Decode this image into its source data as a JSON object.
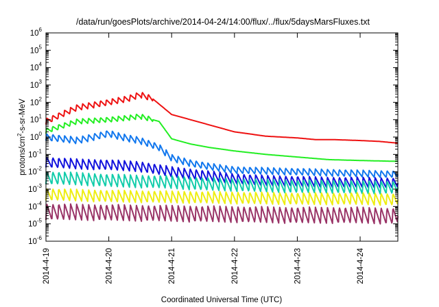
{
  "chart_data": {
    "type": "line",
    "title": "/data/run/goesPlots/archive/2014-04-24/14:00/flux/../flux/5daysMarsFluxes.txt",
    "xlabel": "Coordinated Universal Time (UTC)",
    "ylabel": "protons/cm²-s-sr-MeV",
    "ylabel_base": "protons/cm",
    "ylabel_sup": "2",
    "ylabel_rest": "-s-sr-MeV",
    "yscale": "log",
    "ylim_exp": [
      -6,
      6
    ],
    "y_tick_exponents": [
      -6,
      -5,
      -4,
      -3,
      -2,
      -1,
      0,
      1,
      2,
      3,
      4,
      5,
      6
    ],
    "xlim_days": [
      0,
      5.6
    ],
    "x_ticks": [
      {
        "label": "2014-4-19",
        "day": 0
      },
      {
        "label": "2014-4-20",
        "day": 1
      },
      {
        "label": "2014-4-21",
        "day": 2
      },
      {
        "label": "2014-4-22",
        "day": 3
      },
      {
        "label": "2014-4-23",
        "day": 4
      },
      {
        "label": "2014-4-24",
        "day": 5
      }
    ],
    "grid": false,
    "legend": "none",
    "series": [
      {
        "color": "#ee1111",
        "x": [
          0.0,
          0.5,
          1.0,
          1.3,
          1.5,
          1.7,
          2.0,
          2.5,
          3.0,
          3.5,
          4.0,
          4.3,
          4.6,
          5.0,
          5.3,
          5.6
        ],
        "logy": [
          0.9,
          1.7,
          2.0,
          2.2,
          2.45,
          2.2,
          1.3,
          0.8,
          0.3,
          0.05,
          -0.05,
          -0.15,
          -0.15,
          -0.2,
          -0.25,
          -0.35
        ],
        "jag": 0.35,
        "period": 0.095,
        "jag_until": 1.7
      },
      {
        "color": "#22ee22",
        "x": [
          0.0,
          0.5,
          1.0,
          1.3,
          1.5,
          1.8,
          2.0,
          2.3,
          2.6,
          3.0,
          3.5,
          4.0,
          4.5,
          5.0,
          5.6
        ],
        "logy": [
          0.35,
          0.9,
          1.0,
          1.1,
          1.2,
          0.9,
          -0.1,
          -0.4,
          -0.6,
          -0.8,
          -1.0,
          -1.15,
          -1.3,
          -1.35,
          -1.4
        ],
        "jag": 0.3,
        "period": 0.095,
        "jag_until": 1.7
      },
      {
        "color": "#1177ee",
        "x": [
          0.0,
          0.5,
          1.0,
          1.2,
          1.5,
          1.8,
          2.0,
          2.3,
          2.6,
          3.0,
          3.5,
          4.0,
          4.5,
          5.0,
          5.6
        ],
        "logy": [
          0.0,
          -0.2,
          0.2,
          0.0,
          -0.2,
          -0.6,
          -1.2,
          -1.5,
          -1.7,
          -1.9,
          -1.95,
          -2.0,
          -2.05,
          -2.1,
          -2.15
        ],
        "jag": 0.4,
        "period": 0.095,
        "jag_until": 5.6
      },
      {
        "color": "#1111dd",
        "x": [
          0.0,
          0.5,
          1.0,
          1.5,
          2.0,
          2.5,
          3.0,
          3.5,
          4.0,
          4.5,
          5.0,
          5.6
        ],
        "logy": [
          -1.45,
          -1.55,
          -1.6,
          -1.7,
          -2.0,
          -2.2,
          -2.4,
          -2.5,
          -2.55,
          -2.6,
          -2.6,
          -2.65
        ],
        "jag": 0.6,
        "period": 0.095,
        "jag_until": 5.6
      },
      {
        "color": "#11ccaa",
        "x": [
          0.0,
          0.5,
          1.0,
          1.5,
          2.0,
          2.5,
          3.0,
          3.5,
          4.0,
          4.5,
          5.0,
          5.6
        ],
        "logy": [
          -2.35,
          -2.4,
          -2.5,
          -2.55,
          -2.6,
          -2.7,
          -2.75,
          -2.8,
          -2.85,
          -2.85,
          -2.9,
          -2.9
        ],
        "jag": 0.75,
        "period": 0.095,
        "jag_until": 5.6
      },
      {
        "color": "#eeee11",
        "x": [
          0.0,
          1.0,
          2.0,
          3.0,
          4.0,
          5.0,
          5.6
        ],
        "logy": [
          -3.3,
          -3.4,
          -3.45,
          -3.5,
          -3.55,
          -3.55,
          -3.6
        ],
        "jag": 0.7,
        "period": 0.095,
        "jag_until": 5.6
      },
      {
        "color": "#993366",
        "x": [
          0.0,
          1.0,
          2.0,
          3.0,
          4.0,
          5.0,
          5.6
        ],
        "logy": [
          -4.3,
          -4.35,
          -4.4,
          -4.45,
          -4.5,
          -4.5,
          -4.55
        ],
        "jag": 0.95,
        "period": 0.095,
        "jag_until": 5.6
      }
    ]
  }
}
